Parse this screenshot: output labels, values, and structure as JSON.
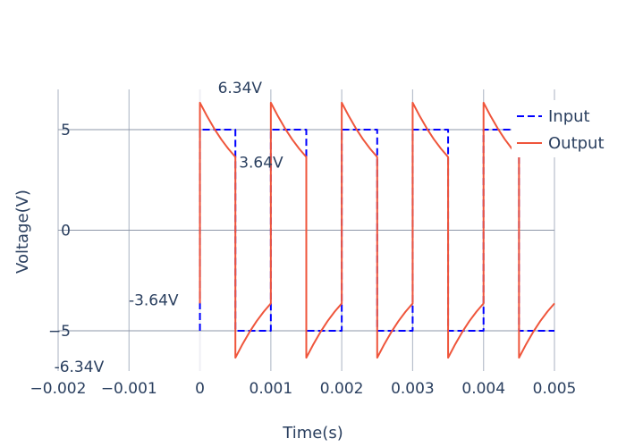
{
  "chart_data": {
    "type": "line",
    "title": "",
    "xlabel": "Time(s)",
    "ylabel": "Voltage(V)",
    "xlim": [
      -0.002,
      0.005
    ],
    "ylim": [
      -7,
      7
    ],
    "grid": true,
    "legend_position": "top-right",
    "x_ticks": [
      {
        "value": -0.002,
        "label": "−0.002"
      },
      {
        "value": -0.001,
        "label": "−0.001"
      },
      {
        "value": 0,
        "label": "0"
      },
      {
        "value": 0.001,
        "label": "0.001"
      },
      {
        "value": 0.002,
        "label": "0.002"
      },
      {
        "value": 0.003,
        "label": "0.003"
      },
      {
        "value": 0.004,
        "label": "0.004"
      },
      {
        "value": 0.005,
        "label": "0.005"
      }
    ],
    "y_ticks": [
      {
        "value": -5,
        "label": "−5"
      },
      {
        "value": 0,
        "label": "0"
      },
      {
        "value": 5,
        "label": "5"
      }
    ],
    "series": [
      {
        "name": "Input",
        "color": "#0000ff",
        "dash": "dashed",
        "x": [
          0,
          0,
          0.0005,
          0.0005,
          0.001,
          0.001,
          0.0015,
          0.0015,
          0.002,
          0.002,
          0.0025,
          0.0025,
          0.003,
          0.003,
          0.0035,
          0.0035,
          0.004,
          0.004,
          0.0045,
          0.0045,
          0.005
        ],
        "y": [
          -5,
          5,
          5,
          -5,
          -5,
          5,
          5,
          -5,
          -5,
          5,
          5,
          -5,
          -5,
          5,
          5,
          -5,
          -5,
          5,
          5,
          -5,
          -5
        ]
      },
      {
        "name": "Output",
        "color": "#ef553b",
        "dash": "solid",
        "x": [
          0,
          0,
          0.0001,
          0.0002,
          0.0003,
          0.0004,
          0.0005,
          0.0005,
          0.0006,
          0.0007,
          0.0008,
          0.0009,
          0.001,
          0.001,
          0.0011,
          0.0012,
          0.0013,
          0.0014,
          0.0015,
          0.0015,
          0.0016,
          0.0017,
          0.0018,
          0.0019,
          0.002,
          0.002,
          0.0021,
          0.0022,
          0.0023,
          0.0024,
          0.0025,
          0.0025,
          0.0026,
          0.0027,
          0.0028,
          0.0029,
          0.003,
          0.003,
          0.0031,
          0.0032,
          0.0033,
          0.0034,
          0.0035,
          0.0035,
          0.0036,
          0.0037,
          0.0038,
          0.0039,
          0.004,
          0.004,
          0.0041,
          0.0042,
          0.0043,
          0.0044,
          0.0045,
          0.0045,
          0.0046,
          0.0047,
          0.0048,
          0.0049,
          0.005
        ],
        "y": [
          -3.64,
          6.34,
          5.67,
          5.06,
          4.52,
          4.05,
          3.64,
          -6.34,
          -5.67,
          -5.06,
          -4.52,
          -4.05,
          -3.64,
          6.34,
          5.67,
          5.06,
          4.52,
          4.05,
          3.64,
          -6.34,
          -5.67,
          -5.06,
          -4.52,
          -4.05,
          -3.64,
          6.34,
          5.67,
          5.06,
          4.52,
          4.05,
          3.64,
          -6.34,
          -5.67,
          -5.06,
          -4.52,
          -4.05,
          -3.64,
          6.34,
          5.67,
          5.06,
          4.52,
          4.05,
          3.64,
          -6.34,
          -5.67,
          -5.06,
          -4.52,
          -4.05,
          -3.64,
          6.34,
          5.67,
          5.06,
          4.52,
          4.05,
          3.64,
          -6.34,
          -5.67,
          -5.06,
          -4.52,
          -4.05,
          -3.64
        ]
      }
    ],
    "annotations": [
      {
        "text": "6.34V",
        "x": 0,
        "y": 6.34
      },
      {
        "text": "3.64V",
        "x": 0.0005,
        "y": 3.64
      },
      {
        "text": "-3.64V",
        "x": 0,
        "y": -3.64
      },
      {
        "text": "-6.34V",
        "x": 0.0005,
        "y": -6.34
      }
    ]
  }
}
